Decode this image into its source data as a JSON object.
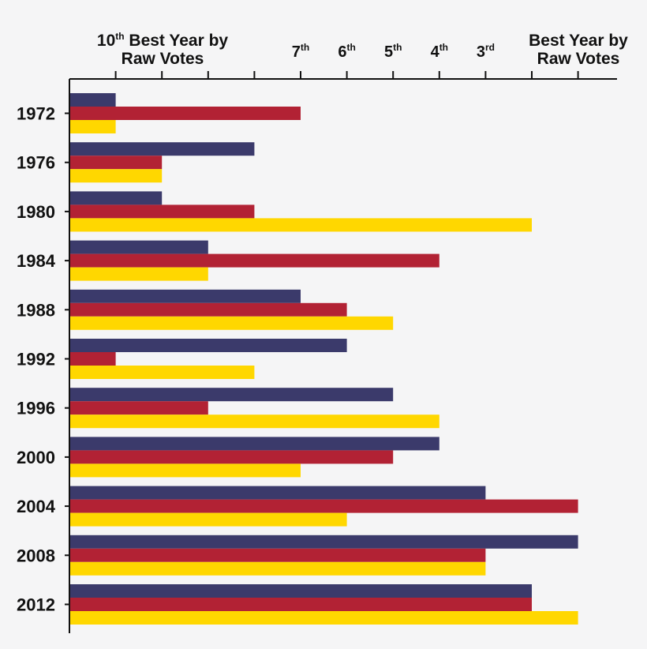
{
  "chart_data": {
    "type": "bar",
    "orientation": "horizontal",
    "categories": [
      "1972",
      "1976",
      "1980",
      "1984",
      "1988",
      "1992",
      "1996",
      "2000",
      "2004",
      "2008",
      "2012"
    ],
    "series": [
      {
        "color": "#3b3a6b",
        "values": [
          1,
          4,
          2,
          3,
          5,
          6,
          7,
          8,
          9,
          11,
          10
        ]
      },
      {
        "color": "#b22234",
        "values": [
          5,
          2,
          4,
          8,
          6,
          1,
          3,
          7,
          11,
          9,
          10
        ]
      },
      {
        "color": "#ffd700",
        "values": [
          1,
          2,
          10,
          3,
          7,
          4,
          8,
          5,
          6,
          9,
          11
        ]
      }
    ],
    "xlim": [
      0,
      11
    ],
    "top_axis": {
      "left_heading": {
        "main": "10",
        "sup": "th",
        "rest": " Best Year by",
        "line2": "Raw Votes"
      },
      "right_heading": {
        "line1": "Best Year by",
        "line2": "Raw Votes"
      },
      "ticks": [
        {
          "pos": 5,
          "main": "7",
          "sup": "th"
        },
        {
          "pos": 6,
          "main": "6",
          "sup": "th"
        },
        {
          "pos": 7,
          "main": "5",
          "sup": "th"
        },
        {
          "pos": 8,
          "main": "4",
          "sup": "th"
        },
        {
          "pos": 9,
          "main": "3",
          "sup": "rd"
        }
      ]
    },
    "grid": false,
    "legend": "none"
  }
}
